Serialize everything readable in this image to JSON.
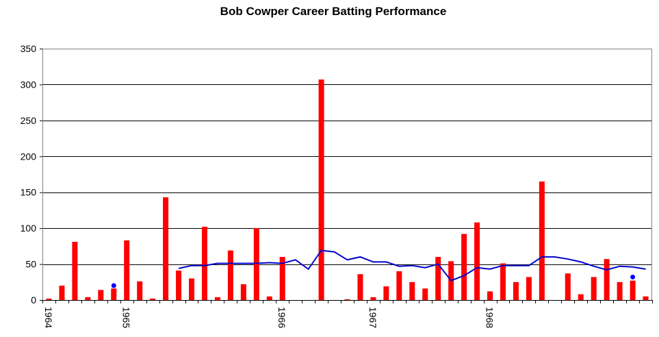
{
  "chart_data": {
    "type": "bar",
    "title": "Bob Cowper Career Batting Performance",
    "xlabel": "",
    "ylabel": "",
    "ylim": [
      0,
      350
    ],
    "yticks": [
      0,
      50,
      100,
      150,
      200,
      250,
      300,
      350
    ],
    "grid": true,
    "legend": "none",
    "colors": {
      "bars": "#ff0000",
      "average_line": "#0000cc",
      "not_out_marker": "#0000ff"
    },
    "innings": [
      2,
      20,
      81,
      4,
      14,
      16,
      83,
      26,
      2,
      143,
      41,
      30,
      102,
      4,
      69,
      22,
      100,
      5,
      60,
      0,
      0,
      307,
      0,
      1,
      36,
      4,
      19,
      40,
      25,
      16,
      60,
      54,
      92,
      108,
      12,
      51,
      25,
      32,
      165,
      0,
      37,
      8,
      32,
      57,
      25,
      27,
      5
    ],
    "not_out_markers": [
      {
        "innings": 5,
        "value": 20
      },
      {
        "innings": 45,
        "value": 32
      }
    ],
    "average_line": [
      {
        "innings": 10,
        "value": 44
      },
      {
        "innings": 11,
        "value": 48
      },
      {
        "innings": 12,
        "value": 48
      },
      {
        "innings": 13,
        "value": 51
      },
      {
        "innings": 14,
        "value": 51
      },
      {
        "innings": 15,
        "value": 51
      },
      {
        "innings": 16,
        "value": 51
      },
      {
        "innings": 17,
        "value": 52
      },
      {
        "innings": 18,
        "value": 51
      },
      {
        "innings": 19,
        "value": 56
      },
      {
        "innings": 20,
        "value": 43
      },
      {
        "innings": 21,
        "value": 69
      },
      {
        "innings": 22,
        "value": 67
      },
      {
        "innings": 23,
        "value": 56
      },
      {
        "innings": 24,
        "value": 60
      },
      {
        "innings": 25,
        "value": 53
      },
      {
        "innings": 26,
        "value": 53
      },
      {
        "innings": 27,
        "value": 47
      },
      {
        "innings": 28,
        "value": 48
      },
      {
        "innings": 29,
        "value": 45
      },
      {
        "innings": 30,
        "value": 50
      },
      {
        "innings": 31,
        "value": 27
      },
      {
        "innings": 32,
        "value": 34
      },
      {
        "innings": 33,
        "value": 45
      },
      {
        "innings": 34,
        "value": 43
      },
      {
        "innings": 35,
        "value": 48
      },
      {
        "innings": 36,
        "value": 48
      },
      {
        "innings": 37,
        "value": 48
      },
      {
        "innings": 38,
        "value": 60
      },
      {
        "innings": 39,
        "value": 60
      },
      {
        "innings": 40,
        "value": 57
      },
      {
        "innings": 41,
        "value": 53
      },
      {
        "innings": 42,
        "value": 47
      },
      {
        "innings": 43,
        "value": 42
      },
      {
        "innings": 44,
        "value": 47
      },
      {
        "innings": 45,
        "value": 46
      },
      {
        "innings": 46,
        "value": 43
      }
    ],
    "year_labels": [
      {
        "label": "1964",
        "innings": 0
      },
      {
        "label": "1965",
        "innings": 6
      },
      {
        "label": "1966",
        "innings": 18
      },
      {
        "label": "1967",
        "innings": 25
      },
      {
        "label": "1968",
        "innings": 34
      }
    ]
  }
}
